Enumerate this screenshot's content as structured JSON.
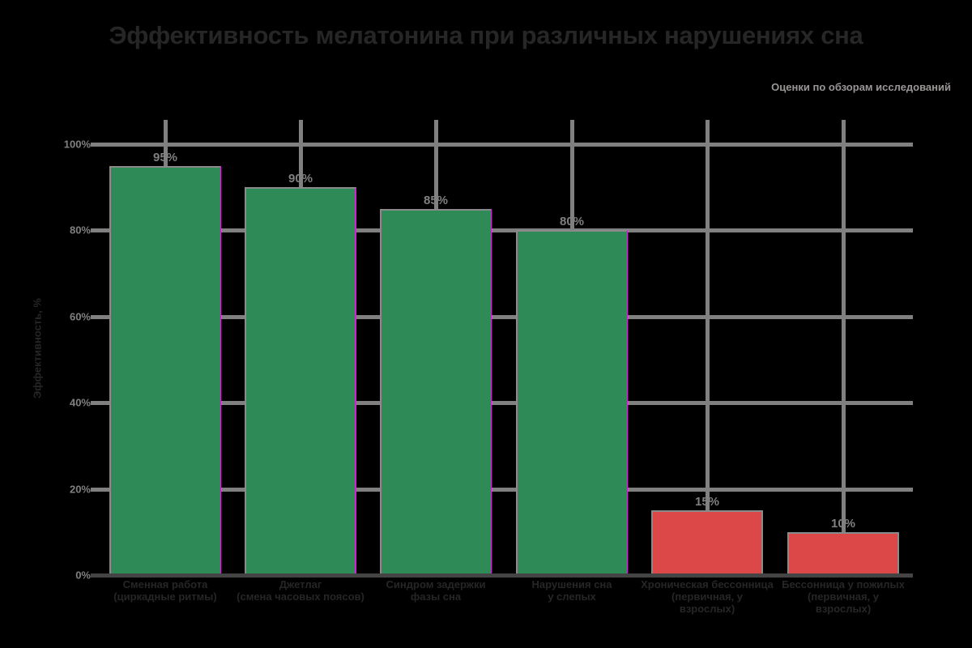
{
  "chart_data": {
    "type": "bar",
    "title": "Эффективность мелатонина при различных нарушениях сна",
    "caption": "Оценки по обзорам исследований",
    "xlabel": "",
    "ylabel": "Эффективность, %",
    "ylim": [
      0,
      100
    ],
    "yticks": [
      "0%",
      "20%",
      "40%",
      "60%",
      "80%",
      "100%"
    ],
    "grid": true,
    "categories": [
      "Сменная работа (циркадные ритмы)",
      "Джетлаг (смена часовых поясов)",
      "Синдром задержки фазы сна",
      "Нарушения сна у слепых",
      "Хроническая бессонница (первичная, у взрослых)",
      "Бессонница у пожилых (первичная, у взрослых)"
    ],
    "values": [
      95,
      90,
      85,
      80,
      15,
      10
    ],
    "value_labels": [
      "95%",
      "90%",
      "85%",
      "80%",
      "15%",
      "10%"
    ],
    "colors": [
      "#2E8B57",
      "#2E8B57",
      "#2E8B57",
      "#2E8B57",
      "#DC4848",
      "#DC4848"
    ]
  },
  "xlabels": [
    [
      "Сменная работа",
      "(циркадные ритмы)"
    ],
    [
      "Джетлаг",
      "(смена часовых поясов)"
    ],
    [
      "Синдром задержки",
      "фазы сна"
    ],
    [
      "Нарушения сна",
      "у слепых"
    ],
    [
      "Хроническая бессонница",
      "(первичная, у",
      "взрослых)"
    ],
    [
      "Бессонница у пожилых",
      "(первичная, у",
      "взрослых)"
    ]
  ]
}
